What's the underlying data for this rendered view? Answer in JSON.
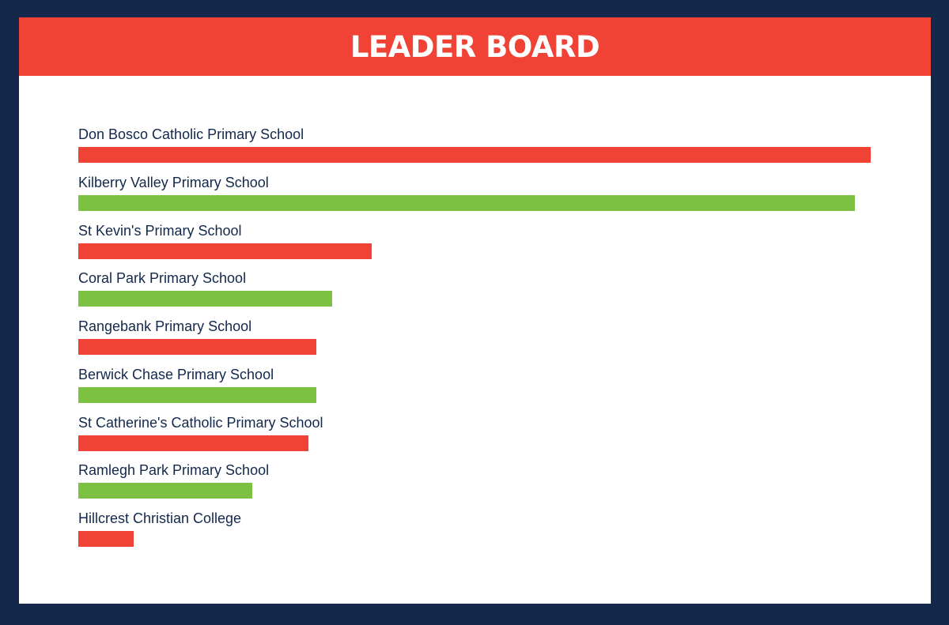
{
  "banner": {
    "title": "LEADER BOARD"
  },
  "colors": {
    "frame": "#13284b",
    "banner": "#f04235",
    "panel": "#ffffff",
    "label_text": "#13284b",
    "bar_red": "#f04235",
    "bar_green": "#7dc142"
  },
  "chart_data": {
    "type": "bar",
    "orientation": "horizontal",
    "title": "LEADER BOARD",
    "xlabel": "",
    "ylabel": "",
    "grid": false,
    "value_labels_shown": false,
    "categories": [
      "Don Bosco Catholic Primary School",
      "Kilberry Valley Primary School",
      "St Kevin's Primary School",
      "Coral Park Primary School",
      "Rangebank Primary School",
      "Berwick Chase Primary School",
      "St Catherine's Catholic Primary School",
      "Ramlegh Park Primary School",
      "Hillcrest Christian College"
    ],
    "values": [
      100,
      98,
      37,
      32,
      30,
      30,
      29,
      22,
      7
    ],
    "value_scale": "relative to leader (leader = 100)",
    "bar_colors": [
      "#f04235",
      "#7dc142",
      "#f04235",
      "#7dc142",
      "#f04235",
      "#7dc142",
      "#f04235",
      "#7dc142",
      "#f04235"
    ]
  }
}
